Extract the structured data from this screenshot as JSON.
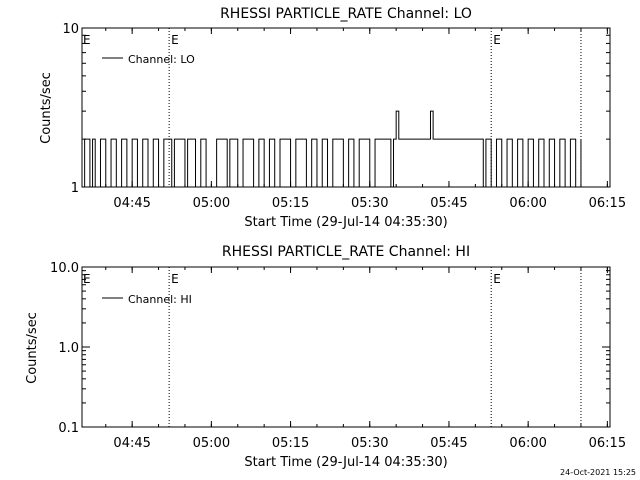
{
  "timestamp": "24-Oct-2021 15:25",
  "chart_data": [
    {
      "type": "line",
      "title": "RHESSI PARTICLE_RATE Channel: LO",
      "xlabel": "Start Time (29-Jul-14 04:35:30)",
      "ylabel": "Counts/sec",
      "yscale": "log",
      "ylim": [
        1,
        10
      ],
      "ytick_labels": [
        "1",
        "10"
      ],
      "xlim": [
        "04:35:30",
        "06:15:30"
      ],
      "xtick_labels": [
        "04:45",
        "05:00",
        "05:15",
        "05:30",
        "05:45",
        "06:00",
        "06:15"
      ],
      "grid": false,
      "legend_position": "top-left",
      "event_markers": [
        {
          "time": "04:52:00",
          "label": "E",
          "style": "dotted"
        },
        {
          "time": "05:53:00",
          "label": "E",
          "style": "dotted"
        },
        {
          "time": "06:10:00",
          "label": "",
          "style": "dotted"
        }
      ],
      "series": [
        {
          "name": "Channel: LO",
          "color": "#000000",
          "description_points": [
            [
              "04:35:30",
              1
            ],
            [
              "04:36:00",
              2
            ],
            [
              "04:37:00",
              1
            ],
            [
              "04:37:30",
              2
            ],
            [
              "04:38:00",
              1
            ],
            [
              "04:39:00",
              2
            ],
            [
              "04:40:00",
              1
            ],
            [
              "04:41:00",
              2
            ],
            [
              "04:42:00",
              1
            ],
            [
              "04:43:00",
              2
            ],
            [
              "04:44:00",
              1
            ],
            [
              "04:45:00",
              2
            ],
            [
              "04:46:00",
              1
            ],
            [
              "04:47:00",
              2
            ],
            [
              "04:48:00",
              1
            ],
            [
              "04:49:00",
              2
            ],
            [
              "04:50:00",
              1
            ],
            [
              "04:51:00",
              2
            ],
            [
              "04:52:30",
              1
            ],
            [
              "04:53:00",
              2
            ],
            [
              "04:55:00",
              1
            ],
            [
              "04:55:30",
              2
            ],
            [
              "04:57:00",
              1
            ],
            [
              "04:58:00",
              2
            ],
            [
              "04:59:00",
              1
            ],
            [
              "05:01:00",
              2
            ],
            [
              "05:03:00",
              1
            ],
            [
              "05:03:30",
              2
            ],
            [
              "05:05:00",
              1
            ],
            [
              "05:06:00",
              2
            ],
            [
              "05:08:00",
              1
            ],
            [
              "05:09:00",
              2
            ],
            [
              "05:10:00",
              1
            ],
            [
              "05:11:00",
              2
            ],
            [
              "05:12:00",
              1
            ],
            [
              "05:13:00",
              2
            ],
            [
              "05:15:00",
              1
            ],
            [
              "05:16:00",
              2
            ],
            [
              "05:18:00",
              1
            ],
            [
              "05:19:00",
              2
            ],
            [
              "05:20:00",
              1
            ],
            [
              "05:21:00",
              2
            ],
            [
              "05:22:00",
              1
            ],
            [
              "05:23:00",
              2
            ],
            [
              "05:25:00",
              1
            ],
            [
              "05:26:00",
              2
            ],
            [
              "05:27:00",
              1
            ],
            [
              "05:28:00",
              2
            ],
            [
              "05:30:00",
              1
            ],
            [
              "05:31:00",
              2
            ],
            [
              "05:34:00",
              1
            ],
            [
              "05:34:30",
              2
            ],
            [
              "05:35:00",
              3
            ],
            [
              "05:35:30",
              2
            ],
            [
              "05:41:00",
              2
            ],
            [
              "05:41:30",
              3
            ],
            [
              "05:42:00",
              2
            ],
            [
              "05:51:00",
              2
            ],
            [
              "05:51:30",
              1
            ],
            [
              "05:52:00",
              2
            ],
            [
              "05:53:00",
              1
            ],
            [
              "05:54:00",
              2
            ],
            [
              "05:55:00",
              1
            ],
            [
              "05:56:00",
              2
            ],
            [
              "05:57:00",
              1
            ],
            [
              "05:58:00",
              2
            ],
            [
              "05:59:00",
              1
            ],
            [
              "06:00:00",
              2
            ],
            [
              "06:01:00",
              1
            ],
            [
              "06:02:00",
              2
            ],
            [
              "06:03:00",
              1
            ],
            [
              "06:04:00",
              2
            ],
            [
              "06:05:00",
              1
            ],
            [
              "06:06:00",
              2
            ],
            [
              "06:07:00",
              1
            ],
            [
              "06:08:00",
              2
            ],
            [
              "06:09:00",
              1
            ],
            [
              "06:10:00",
              2
            ]
          ]
        }
      ]
    },
    {
      "type": "line",
      "title": "RHESSI PARTICLE_RATE Channel: HI",
      "xlabel": "Start Time (29-Jul-14 04:35:30)",
      "ylabel": "Counts/sec",
      "yscale": "log",
      "ylim": [
        0.1,
        10
      ],
      "ytick_labels": [
        "0.1",
        "1.0",
        "10.0"
      ],
      "xlim": [
        "04:35:30",
        "06:15:30"
      ],
      "xtick_labels": [
        "04:45",
        "05:00",
        "05:15",
        "05:30",
        "05:45",
        "06:00",
        "06:15"
      ],
      "grid": false,
      "legend_position": "top-left",
      "event_markers": [
        {
          "time": "04:52:00",
          "label": "E",
          "style": "dotted"
        },
        {
          "time": "05:53:00",
          "label": "E",
          "style": "dotted"
        },
        {
          "time": "06:10:00",
          "label": "",
          "style": "dotted"
        }
      ],
      "series": [
        {
          "name": "Channel: HI",
          "color": "#000000",
          "description_points": []
        }
      ]
    }
  ]
}
